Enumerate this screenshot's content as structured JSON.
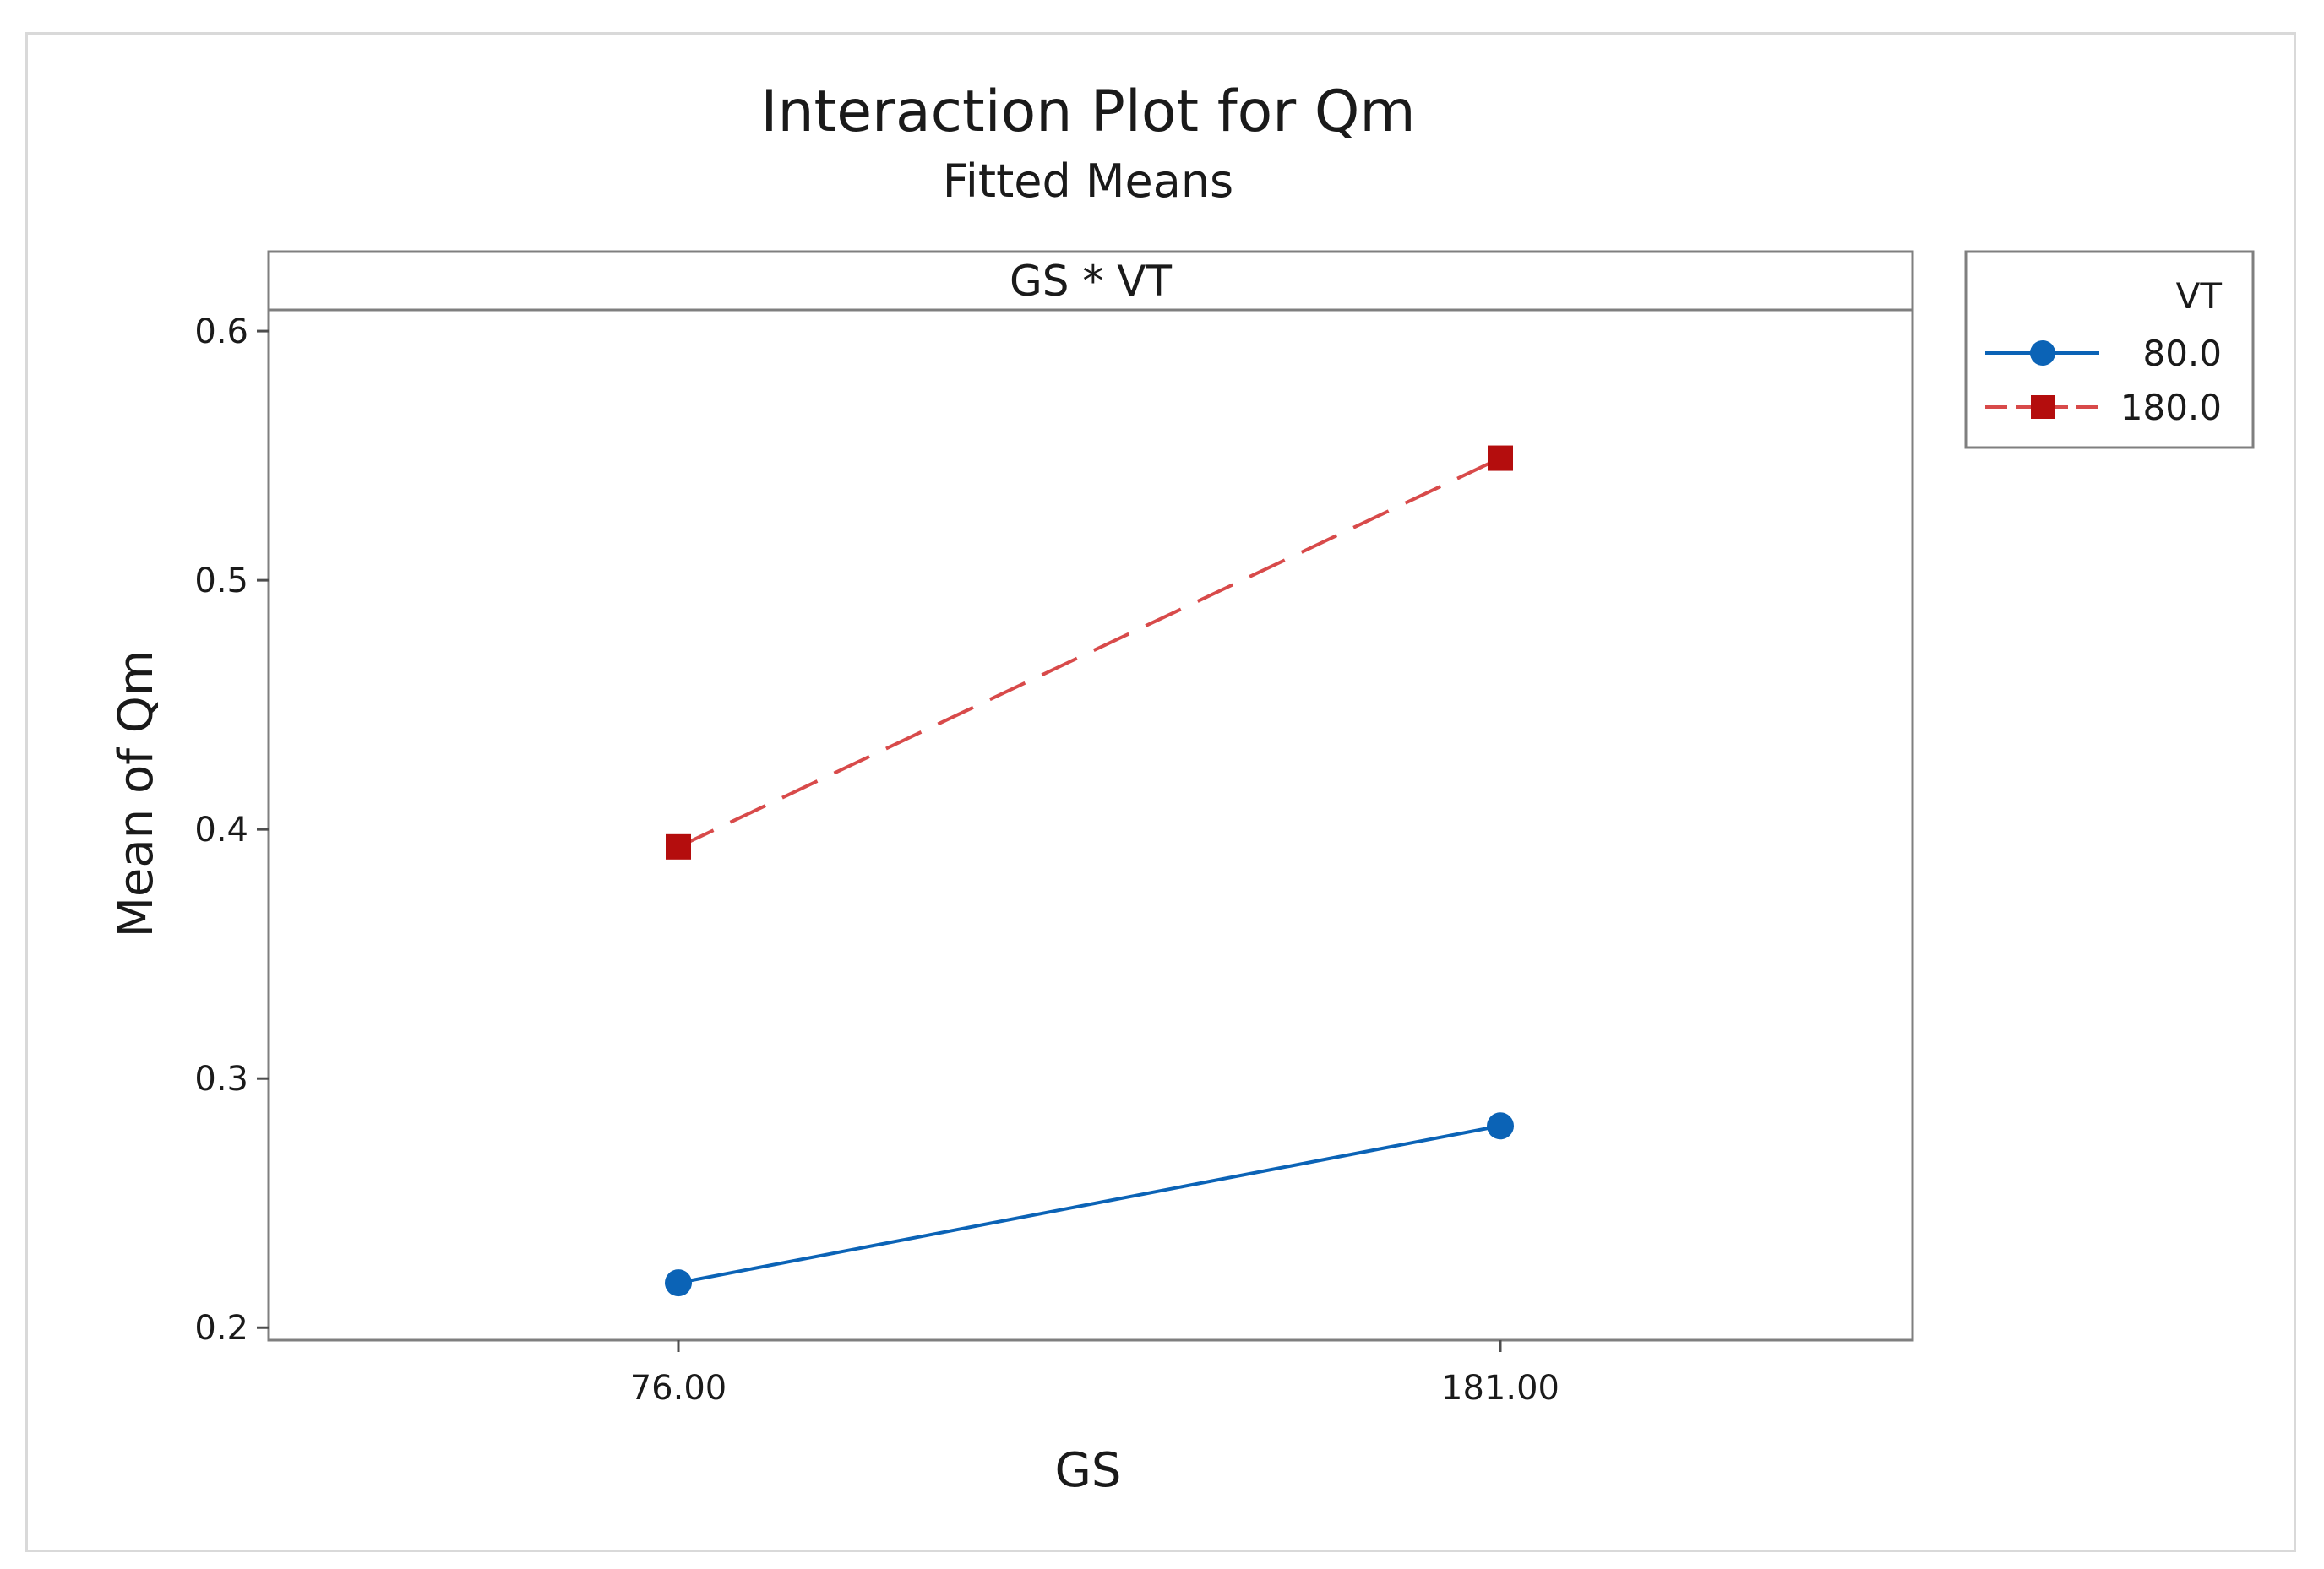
{
  "chart_data": {
    "type": "line",
    "title": "Interaction Plot for Qm",
    "subtitle": "Fitted Means",
    "panel_label": "GS * VT",
    "xlabel": "GS",
    "ylabel": "Mean of Qm",
    "categories": [
      "76.00",
      "181.00"
    ],
    "ylim": [
      0.195,
      0.6085
    ],
    "y_ticks": [
      0.2,
      0.3,
      0.4,
      0.5,
      0.6
    ],
    "y_tick_labels": [
      "0.2",
      "0.3",
      "0.4",
      "0.5",
      "0.6"
    ],
    "grid": false,
    "legend": {
      "title": "VT",
      "placement": "right-top"
    },
    "series": [
      {
        "name": "80.0",
        "values": [
          0.218,
          0.281
        ],
        "color": "#0b63b6",
        "marker": "circle",
        "line_style": "solid"
      },
      {
        "name": "180.0",
        "values": [
          0.393,
          0.549
        ],
        "color": "#b40d0d",
        "line_color": "#d84a4a",
        "marker": "square",
        "line_style": "dashed"
      }
    ]
  }
}
